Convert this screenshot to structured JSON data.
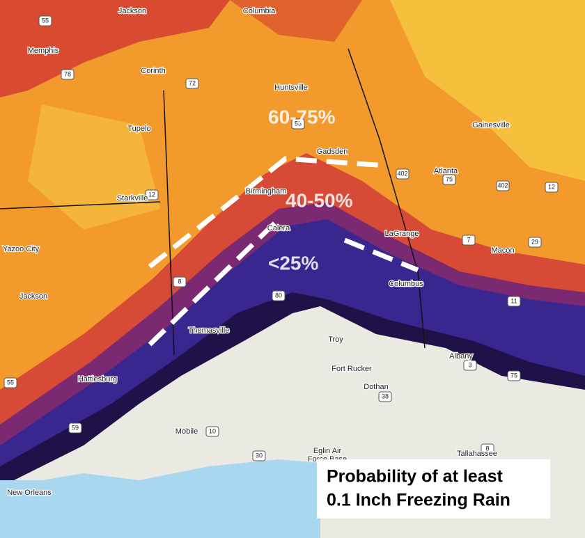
{
  "map": {
    "zones": [
      "60-75%",
      "40-50%",
      "<25%"
    ],
    "cities": [
      "Jackson",
      "Columbia",
      "Memphis",
      "Corinth",
      "Huntsville",
      "Tupelo",
      "Gainesville",
      "Gadsden",
      "Atlanta",
      "Starkville",
      "Birmingham",
      "Calera",
      "LaGrange",
      "Yazoo City",
      "Macon",
      "Columbus",
      "Jackson",
      "Thomasville",
      "Troy",
      "Fort Rucker",
      "Dothan",
      "Albany",
      "Hattiesburg",
      "Mobile",
      "Eglin Air",
      "Force Base",
      "Tallahassee",
      "New Orleans"
    ],
    "highways": [
      "55",
      "78",
      "72",
      "53",
      "402",
      "75",
      "402",
      "12",
      "12",
      "7",
      "29",
      "8",
      "80",
      "11",
      "3",
      "75",
      "55",
      "38",
      "59",
      "10",
      "30",
      "8"
    ]
  },
  "caption": {
    "lines": [
      "Probability of at least",
      "0.1 Inch Freezing Rain"
    ]
  }
}
